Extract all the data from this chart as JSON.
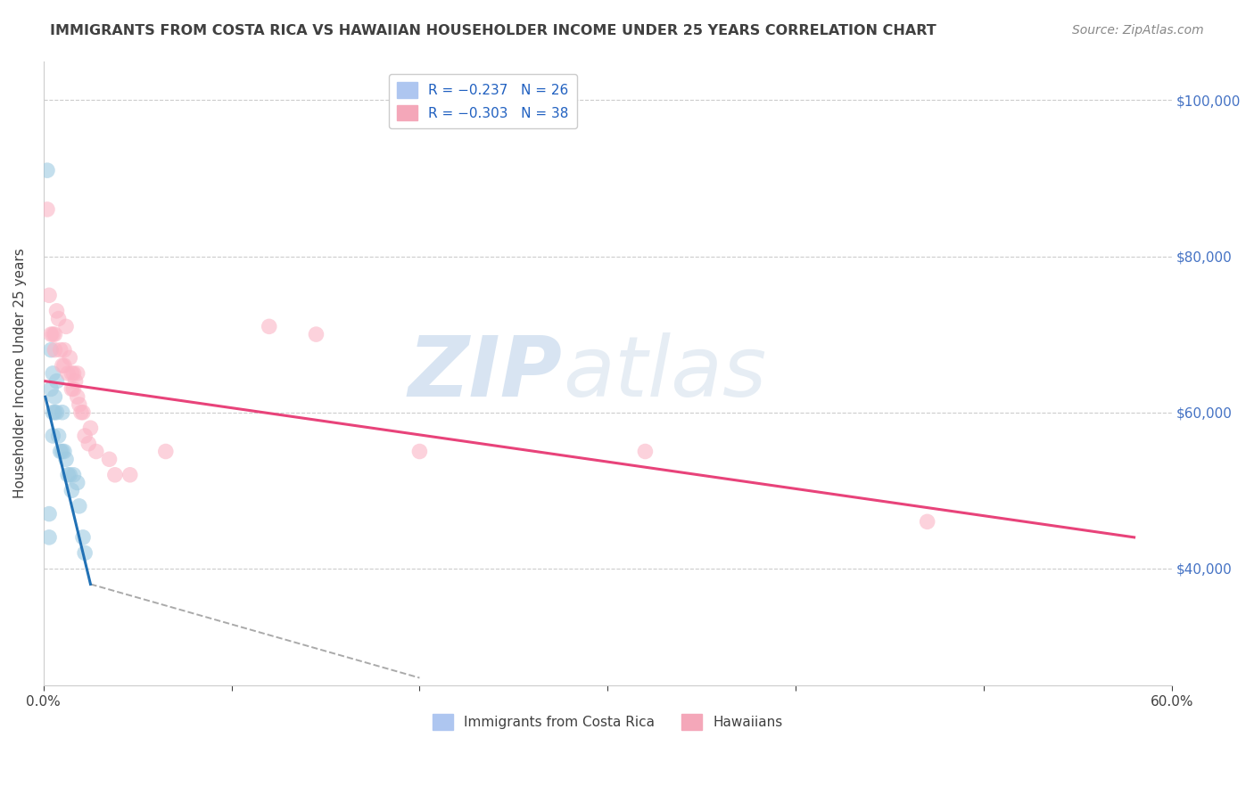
{
  "title": "IMMIGRANTS FROM COSTA RICA VS HAWAIIAN HOUSEHOLDER INCOME UNDER 25 YEARS CORRELATION CHART",
  "source": "Source: ZipAtlas.com",
  "ylabel": "Householder Income Under 25 years",
  "watermark_zip": "ZIP",
  "watermark_atlas": "atlas",
  "xlim": [
    0.0,
    0.6
  ],
  "ylim": [
    25000,
    105000
  ],
  "yticks": [
    40000,
    60000,
    80000,
    100000
  ],
  "xticks": [
    0.0,
    0.1,
    0.2,
    0.3,
    0.4,
    0.5,
    0.6
  ],
  "xtick_labels": [
    "0.0%",
    "",
    "",
    "",
    "",
    "",
    "60.0%"
  ],
  "grid_color": "#cccccc",
  "blue_scatter_x": [
    0.002,
    0.003,
    0.003,
    0.004,
    0.004,
    0.005,
    0.005,
    0.005,
    0.006,
    0.006,
    0.007,
    0.007,
    0.008,
    0.009,
    0.01,
    0.01,
    0.011,
    0.012,
    0.013,
    0.014,
    0.015,
    0.016,
    0.018,
    0.019,
    0.021,
    0.022
  ],
  "blue_scatter_y": [
    91000,
    47000,
    44000,
    68000,
    63000,
    65000,
    60000,
    57000,
    62000,
    60000,
    64000,
    60000,
    57000,
    55000,
    60000,
    55000,
    55000,
    54000,
    52000,
    52000,
    50000,
    52000,
    51000,
    48000,
    44000,
    42000
  ],
  "pink_scatter_x": [
    0.002,
    0.003,
    0.004,
    0.005,
    0.006,
    0.006,
    0.007,
    0.008,
    0.009,
    0.01,
    0.011,
    0.011,
    0.012,
    0.013,
    0.014,
    0.015,
    0.015,
    0.016,
    0.016,
    0.017,
    0.018,
    0.018,
    0.019,
    0.02,
    0.021,
    0.022,
    0.024,
    0.025,
    0.028,
    0.035,
    0.038,
    0.046,
    0.065,
    0.12,
    0.145,
    0.2,
    0.32,
    0.47
  ],
  "pink_scatter_y": [
    86000,
    75000,
    70000,
    70000,
    68000,
    70000,
    73000,
    72000,
    68000,
    66000,
    66000,
    68000,
    71000,
    65000,
    67000,
    63000,
    65000,
    65000,
    63000,
    64000,
    62000,
    65000,
    61000,
    60000,
    60000,
    57000,
    56000,
    58000,
    55000,
    54000,
    52000,
    52000,
    55000,
    71000,
    70000,
    55000,
    55000,
    46000
  ],
  "blue_line_x": [
    0.001,
    0.025
  ],
  "blue_line_y": [
    62000,
    38000
  ],
  "pink_line_x": [
    0.001,
    0.58
  ],
  "pink_line_y": [
    64000,
    44000
  ],
  "dashed_line_x": [
    0.025,
    0.2
  ],
  "dashed_line_y": [
    38000,
    26000
  ],
  "blue_color": "#9ecae1",
  "pink_color": "#fbb4c5",
  "blue_line_color": "#2171b5",
  "pink_line_color": "#e8437a",
  "dashed_color": "#aaaaaa",
  "title_color": "#404040",
  "source_color": "#888888",
  "right_ytick_labels": [
    "$40,000",
    "$60,000",
    "$80,000",
    "$100,000"
  ],
  "right_yticks": [
    40000,
    60000,
    80000,
    100000
  ],
  "legend1_label": "R = −0.237   N = 26",
  "legend2_label": "R = −0.303   N = 38",
  "bottom_legend": [
    "Immigrants from Costa Rica",
    "Hawaiians"
  ]
}
